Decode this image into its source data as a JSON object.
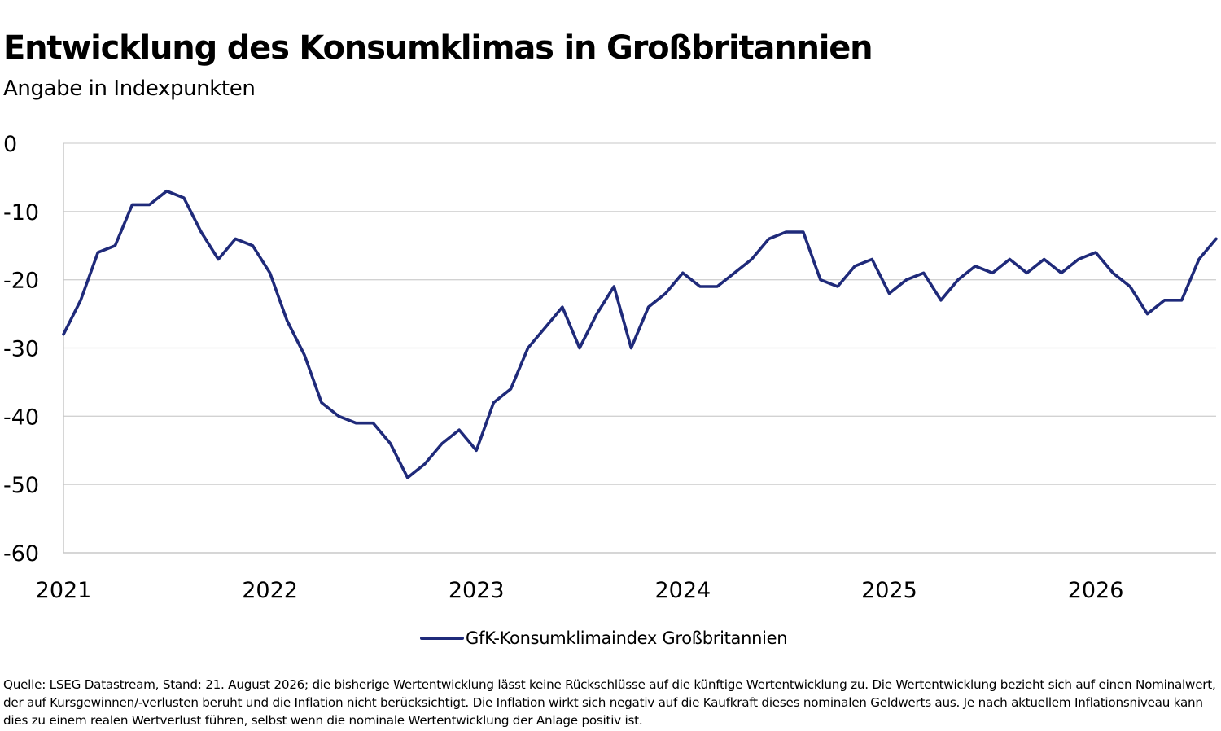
{
  "header": {
    "title": "Entwicklung des Konsumklimas in Großbritannien",
    "subtitle": "Angabe in Indexpunkten"
  },
  "chart_data": {
    "type": "line",
    "title": "Entwicklung des Konsumklimas in Großbritannien",
    "subtitle": "Angabe in Indexpunkten",
    "xlabel": "",
    "ylabel": "",
    "x_start": "2021-01",
    "x_end": "2026-08",
    "x_ticks": [
      "2021",
      "2022",
      "2023",
      "2024",
      "2025",
      "2026"
    ],
    "y_ticks": [
      0,
      -10,
      -20,
      -30,
      -40,
      -50,
      -60
    ],
    "ylim": [
      -60,
      0
    ],
    "grid": true,
    "legend_position": "bottom-center",
    "series": [
      {
        "name": "GfK-Konsumklimaindex Großbritannien",
        "color": "#1f2a7a",
        "x": [
          "2021-01",
          "2021-02",
          "2021-03",
          "2021-04",
          "2021-05",
          "2021-06",
          "2021-07",
          "2021-08",
          "2021-09",
          "2021-10",
          "2021-11",
          "2021-12",
          "2022-01",
          "2022-02",
          "2022-03",
          "2022-04",
          "2022-05",
          "2022-06",
          "2022-07",
          "2022-08",
          "2022-09",
          "2022-10",
          "2022-11",
          "2022-12",
          "2023-01",
          "2023-02",
          "2023-03",
          "2023-04",
          "2023-05",
          "2023-06",
          "2023-07",
          "2023-08",
          "2023-09",
          "2023-10",
          "2023-11",
          "2023-12",
          "2024-01",
          "2024-02",
          "2024-03",
          "2024-04",
          "2024-05",
          "2024-06",
          "2024-07",
          "2024-08",
          "2024-09",
          "2024-10",
          "2024-11",
          "2024-12",
          "2025-01",
          "2025-02",
          "2025-03",
          "2025-04",
          "2025-05",
          "2025-06",
          "2025-07",
          "2025-08",
          "2025-09",
          "2025-10",
          "2025-11",
          "2025-12",
          "2026-01",
          "2026-02",
          "2026-03",
          "2026-04",
          "2026-05",
          "2026-06",
          "2026-07",
          "2026-08"
        ],
        "values": [
          -28,
          -23,
          -16,
          -15,
          -9,
          -9,
          -7,
          -8,
          -13,
          -17,
          -14,
          -15,
          -19,
          -26,
          -31,
          -38,
          -40,
          -41,
          -41,
          -44,
          -49,
          -47,
          -44,
          -42,
          -45,
          -38,
          -36,
          -30,
          -27,
          -24,
          -30,
          -25,
          -21,
          -30,
          -24,
          -22,
          -19,
          -21,
          -21,
          -19,
          -17,
          -14,
          -13,
          -13,
          -20,
          -21,
          -18,
          -17,
          -22,
          -20,
          -19,
          -23,
          -20,
          -18,
          -19,
          -17,
          -19,
          -17,
          -19,
          -17,
          -16,
          -19,
          -21,
          -25,
          -23,
          -23,
          -17,
          -14
        ]
      }
    ]
  },
  "legend": {
    "items": [
      {
        "label": "GfK-Konsumklimaindex Großbritannien",
        "color": "#1f2a7a"
      }
    ]
  },
  "footer": {
    "source": "Quelle: LSEG Datastream, Stand: 21. August 2026; die bisherige Wertentwicklung lässt keine Rückschlüsse auf die künftige Wertentwicklung zu. Die Wertentwicklung bezieht sich auf einen Nominalwert, der auf Kursgewinnen/-verlusten beruht und die Inflation nicht berücksichtigt. Die Inflation wirkt sich negativ auf die Kaufkraft dieses nominalen Geldwerts aus. Je nach aktuellem Inflationsniveau kann dies zu einem realen Wertverlust führen, selbst wenn die nominale Wertentwicklung der Anlage positiv ist."
  }
}
